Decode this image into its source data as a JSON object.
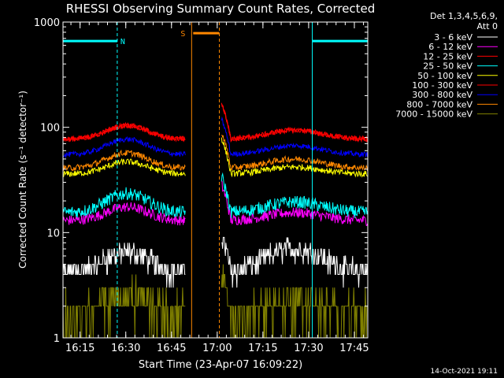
{
  "chart_data": {
    "type": "line",
    "title": "RHESSI Observing Summary Count Rates, Corrected",
    "xlabel": "Start Time (23-Apr-07 16:09:22)",
    "ylabel": "Corrected Count Rate (s⁻¹ detector⁻¹)",
    "yscale": "log",
    "ylim": [
      1,
      1000
    ],
    "xlim_minutes": [
      0,
      100
    ],
    "x_ticks": [
      {
        "label": "16:15",
        "minute": 5.6
      },
      {
        "label": "16:30",
        "minute": 20.6
      },
      {
        "label": "16:45",
        "minute": 35.6
      },
      {
        "label": "17:00",
        "minute": 50.6
      },
      {
        "label": "17:15",
        "minute": 65.6
      },
      {
        "label": "17:30",
        "minute": 80.6
      },
      {
        "label": "17:45",
        "minute": 95.6
      }
    ],
    "y_ticks": [
      {
        "label": "1",
        "value": 1
      },
      {
        "label": "10",
        "value": 10
      },
      {
        "label": "100",
        "value": 100
      },
      {
        "label": "1000",
        "value": 1000
      }
    ],
    "legend_header": [
      "Det 1,3,4,5,6,9,",
      "Att 0"
    ],
    "series": [
      {
        "name": "3 - 6 keV",
        "color": "#ffffff",
        "base": 4.2,
        "bump": 2.4,
        "late": 2.8,
        "lvl": "int",
        "noise": 0.09
      },
      {
        "name": "6 - 12 keV",
        "color": "#ff00ff",
        "base": 13,
        "bump": 4.5,
        "late": 2.5,
        "noise": 0.05
      },
      {
        "name": "12 - 25 keV",
        "color": "#ff0000",
        "base": 77,
        "bump": 27,
        "late": 17,
        "noise": 0.025
      },
      {
        "name": "25 - 50 keV",
        "color": "#00ffff",
        "base": 15.5,
        "bump": 8,
        "late": 4,
        "noise": 0.06
      },
      {
        "name": "50 - 100 keV",
        "color": "#ffff00",
        "base": 36,
        "bump": 11,
        "late": 6,
        "noise": 0.03
      },
      {
        "name": "100 - 300 keV",
        "color": "#ff0000",
        "base": 77,
        "bump": 27,
        "late": 17,
        "noise": 0.025
      },
      {
        "name": "300 - 800 keV",
        "color": "#0000ff",
        "base": 55,
        "bump": 22,
        "late": 12,
        "noise": 0.025
      },
      {
        "name": "800 - 7000 keV",
        "color": "#ff8800",
        "base": 41,
        "bump": 16,
        "late": 9,
        "noise": 0.03
      },
      {
        "name": "7000 - 15000 keV",
        "color": "#808000",
        "base": 1.6,
        "bump": 0.9,
        "late": 0.6,
        "lvl": "int",
        "noise": 0.15
      }
    ],
    "data_gap_minutes": [
      40.2,
      52.0
    ],
    "saa_flag": {
      "label": "S",
      "start_minute": 42.2,
      "end_minute": 51.3,
      "level": 660,
      "color": "#ff8800"
    },
    "night_flag": {
      "label": "N",
      "color": "#00ffff",
      "level": 660,
      "intervals": [
        [
          0,
          17.8
        ],
        [
          81.8,
          100
        ]
      ]
    },
    "night_boundaries_minutes": [
      0,
      17.8,
      81.8,
      100
    ],
    "saa_boundaries_minutes": [
      42.2,
      51.3
    ],
    "footer_date": "14-Oct-2021 19:11"
  }
}
